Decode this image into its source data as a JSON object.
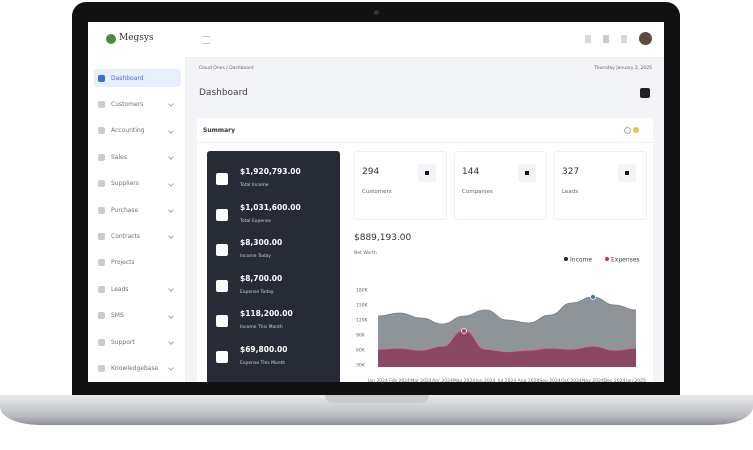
{
  "sidebar": {
    "brand": "Megsys",
    "items": [
      "Dashboard",
      "Customers",
      "Accounting",
      "Sales",
      "Suppliers",
      "Purchase",
      "Contracts",
      "Projects",
      "Leads",
      "SMS",
      "Support",
      "Knowledgebase"
    ]
  },
  "header": {
    "breadcrumb": [
      "Cloud Ones",
      "Dashboard"
    ],
    "date": "Thursday January 2, 2025",
    "title": "Dashboard"
  },
  "summary": {
    "title": "Summary",
    "totals": [
      {
        "amount": "$1,920,793.00",
        "label": "Total Income"
      },
      {
        "amount": "$1,031,600.00",
        "label": "Total Expense"
      },
      {
        "amount": "$8,300.00",
        "label": "Income Today"
      },
      {
        "amount": "$8,700.00",
        "label": "Expense Today"
      },
      {
        "amount": "$118,200.00",
        "label": "Income This Month"
      },
      {
        "amount": "$69,800.00",
        "label": "Expense This Month"
      }
    ],
    "stats": [
      {
        "value": "294",
        "label": "Customers"
      },
      {
        "value": "144",
        "label": "Companies"
      },
      {
        "value": "327",
        "label": "Leads"
      }
    ],
    "net_worth": "$889,193.00",
    "net_worth_label": "Net Worth"
  },
  "chart_data": {
    "type": "area",
    "categories": [
      "Jan 2024",
      "Feb 2024",
      "Mar 2024",
      "Apr 2024",
      "May 2024",
      "Jun 2024",
      "Jul 2024",
      "Aug 2024",
      "Sep 2024",
      "Oct 2024",
      "Nov 2024",
      "Dec 2024",
      "Jan 2025"
    ],
    "series": [
      {
        "name": "Income",
        "color": "#8f9499",
        "values": [
          128000,
          134000,
          124000,
          112000,
          128000,
          140000,
          120000,
          114000,
          130000,
          154000,
          166000,
          150000,
          140000
        ]
      },
      {
        "name": "Expenses",
        "color": "#e0245e",
        "values": [
          60000,
          62000,
          58000,
          66000,
          98000,
          60000,
          55000,
          58000,
          62000,
          60000,
          66000,
          58000,
          62000
        ]
      }
    ],
    "ylim": [
      30000,
      180000
    ],
    "yticks": [
      {
        "value": 30000,
        "label": "30K"
      },
      {
        "value": 60000,
        "label": "60K"
      },
      {
        "value": 90000,
        "label": "90K"
      },
      {
        "value": 120000,
        "label": "120K"
      },
      {
        "value": 150000,
        "label": "150K"
      },
      {
        "value": 180000,
        "label": "180K"
      }
    ]
  }
}
